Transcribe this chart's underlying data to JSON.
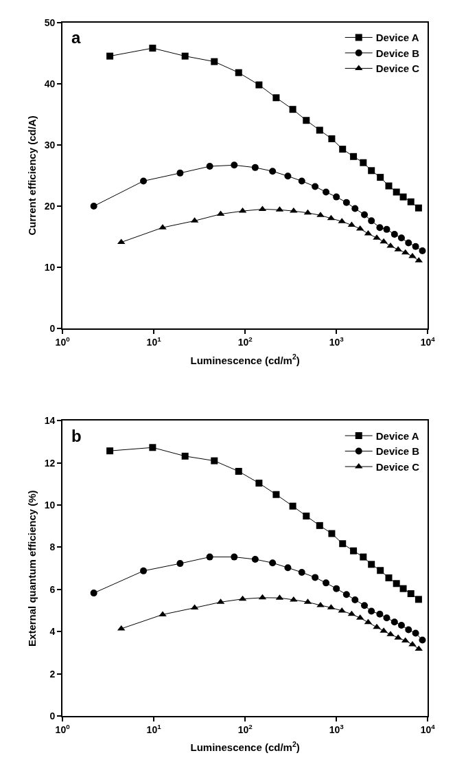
{
  "chart_data": [
    {
      "type": "line",
      "xlabel": "Luminescence (cd/m$^{2}$)",
      "ylabel": "Current efficiency (cd/A)",
      "annotations": [
        "a"
      ],
      "log": "x",
      "xlim": [
        1,
        10000
      ],
      "xticks": [
        {
          "value": 1,
          "label": "10$^{0}$"
        },
        {
          "value": 10,
          "label": "10$^{1}$"
        },
        {
          "value": 100,
          "label": "10$^{2}$"
        },
        {
          "value": 1000,
          "label": "10$^{3}$"
        },
        {
          "value": 10000,
          "label": "10$^{4}$"
        }
      ],
      "ylim": [
        0,
        50
      ],
      "yticks": [
        0,
        10,
        20,
        30,
        40,
        50
      ],
      "legend": "top right",
      "line_style": "solid",
      "series": [
        {
          "name": "Device A",
          "color": "#000000",
          "marker": "square",
          "x": [
            3.3,
            9.7,
            22,
            46,
            85,
            142,
            219,
            333,
            468,
            656,
            890,
            1170,
            1540,
            1970,
            2420,
            3030,
            3750,
            4550,
            5400,
            6550,
            7950
          ],
          "values": [
            44.5,
            45.8,
            44.5,
            43.6,
            41.8,
            39.8,
            37.7,
            35.8,
            34.0,
            32.4,
            31.0,
            29.3,
            28.1,
            27.1,
            25.8,
            24.7,
            23.3,
            22.3,
            21.5,
            20.7,
            19.7
          ]
        },
        {
          "name": "Device B",
          "color": "#000000",
          "marker": "circle",
          "x": [
            2.2,
            7.7,
            19.4,
            41,
            76,
            129,
            200,
            294,
            418,
            585,
            770,
            1000,
            1290,
            1600,
            2030,
            2420,
            2990,
            3560,
            4330,
            5160,
            6170,
            7380,
            8760
          ],
          "values": [
            20.0,
            24.1,
            25.4,
            26.5,
            26.7,
            26.3,
            25.7,
            24.9,
            24.1,
            23.2,
            22.3,
            21.5,
            20.6,
            19.6,
            18.6,
            17.6,
            16.5,
            16.2,
            15.4,
            14.8,
            14.0,
            13.4,
            12.7
          ]
        },
        {
          "name": "Device C",
          "color": "#000000",
          "marker": "triangle",
          "x": [
            4.4,
            12.5,
            28,
            54,
            94,
            155,
            239,
            340,
            486,
            670,
            875,
            1150,
            1470,
            1820,
            2230,
            2770,
            3300,
            3920,
            4750,
            5700,
            6810,
            8000
          ],
          "values": [
            14.1,
            16.5,
            17.6,
            18.7,
            19.2,
            19.5,
            19.4,
            19.2,
            18.9,
            18.5,
            18.0,
            17.5,
            16.9,
            16.3,
            15.5,
            14.8,
            14.2,
            13.5,
            12.9,
            12.4,
            11.8,
            11.1
          ]
        }
      ]
    },
    {
      "type": "line",
      "xlabel": "Luminescence (cd/m$^{2}$)",
      "ylabel": "External quantum efficiency (%)",
      "annotations": [
        "b"
      ],
      "log": "x",
      "xlim": [
        1,
        10000
      ],
      "xticks": [
        {
          "value": 1,
          "label": "10$^{0}$"
        },
        {
          "value": 10,
          "label": "10$^{1}$"
        },
        {
          "value": 100,
          "label": "10$^{2}$"
        },
        {
          "value": 1000,
          "label": "10$^{3}$"
        },
        {
          "value": 10000,
          "label": "10$^{4}$"
        }
      ],
      "ylim": [
        0,
        14
      ],
      "yticks": [
        0,
        2,
        4,
        6,
        8,
        10,
        12,
        14
      ],
      "legend": "top right",
      "line_style": "solid",
      "series": [
        {
          "name": "Device A",
          "color": "#000000",
          "marker": "square",
          "x": [
            3.3,
            9.7,
            22,
            46,
            85,
            142,
            219,
            333,
            468,
            656,
            890,
            1170,
            1540,
            1970,
            2420,
            3030,
            3750,
            4550,
            5400,
            6550,
            7950
          ],
          "values": [
            12.57,
            12.73,
            12.32,
            12.1,
            11.6,
            11.04,
            10.5,
            9.95,
            9.48,
            9.03,
            8.65,
            8.17,
            7.83,
            7.54,
            7.19,
            6.9,
            6.55,
            6.28,
            6.04,
            5.8,
            5.53
          ]
        },
        {
          "name": "Device B",
          "color": "#000000",
          "marker": "circle",
          "x": [
            2.2,
            7.7,
            19.4,
            41,
            76,
            129,
            200,
            294,
            418,
            585,
            770,
            1000,
            1290,
            1600,
            2030,
            2420,
            2990,
            3560,
            4330,
            5160,
            6170,
            7380,
            8760
          ],
          "values": [
            5.83,
            6.88,
            7.23,
            7.54,
            7.54,
            7.43,
            7.26,
            7.03,
            6.81,
            6.57,
            6.31,
            6.04,
            5.76,
            5.51,
            5.24,
            4.97,
            4.83,
            4.65,
            4.46,
            4.3,
            4.09,
            3.93,
            3.6
          ]
        },
        {
          "name": "Device C",
          "color": "#000000",
          "marker": "triangle",
          "x": [
            4.4,
            12.5,
            28,
            54,
            94,
            155,
            239,
            340,
            486,
            670,
            875,
            1150,
            1470,
            1820,
            2230,
            2770,
            3300,
            3920,
            4750,
            5700,
            6810,
            8000
          ],
          "values": [
            4.14,
            4.81,
            5.13,
            5.4,
            5.55,
            5.61,
            5.6,
            5.51,
            5.4,
            5.25,
            5.14,
            4.99,
            4.83,
            4.65,
            4.44,
            4.21,
            4.03,
            3.87,
            3.71,
            3.57,
            3.39,
            3.18
          ]
        }
      ]
    }
  ]
}
